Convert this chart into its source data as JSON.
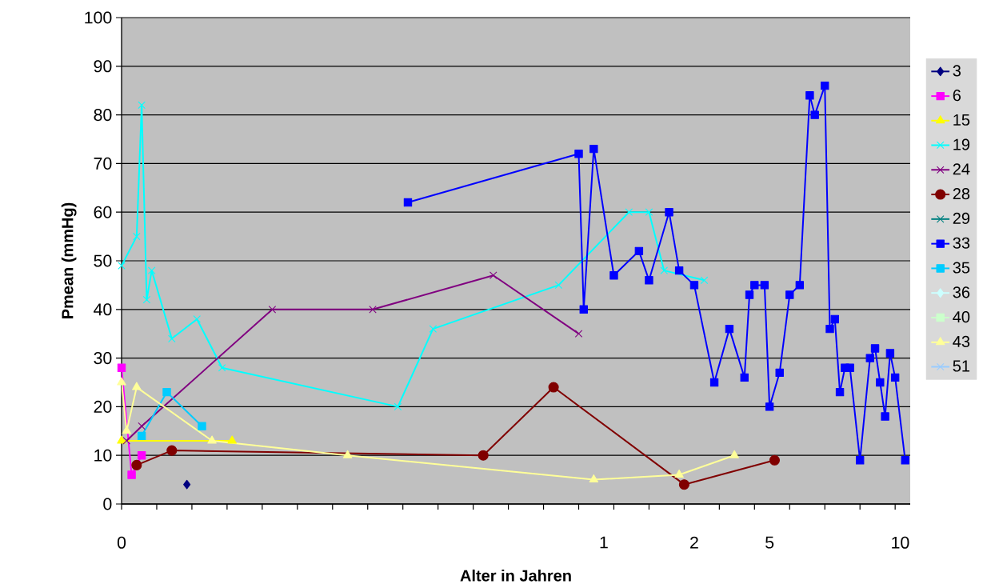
{
  "chart_data": {
    "type": "line",
    "xlabel": "Alter in Jahren",
    "ylabel": "Pmean (mmHg)",
    "categories": [
      "0",
      null,
      null,
      null,
      null,
      null,
      null,
      null,
      null,
      null,
      null,
      null,
      null,
      null,
      null,
      null,
      null,
      null,
      null,
      null,
      null,
      null,
      null,
      null,
      null,
      null,
      null,
      null,
      null,
      null,
      null,
      null,
      null,
      null,
      null,
      null,
      null,
      null,
      null,
      null,
      null,
      null,
      null,
      null,
      null,
      null,
      null,
      null,
      null,
      null,
      null,
      null,
      null,
      null,
      null,
      null,
      null,
      null,
      null,
      null,
      null,
      null,
      null,
      null,
      null,
      null,
      null,
      null,
      null,
      null,
      null,
      null,
      null,
      null,
      null,
      null,
      null,
      null,
      null,
      null,
      null,
      null,
      null,
      null,
      null,
      null,
      null,
      null,
      null,
      null,
      null,
      null,
      null,
      null,
      null,
      null,
      "1",
      null,
      null,
      null,
      null,
      null,
      null,
      null,
      null,
      null,
      null,
      null,
      null,
      null,
      null,
      null,
      null,
      null,
      "2",
      null,
      null,
      null,
      null,
      null,
      null,
      null,
      null,
      null,
      null,
      null,
      null,
      null,
      null,
      "5",
      null,
      null,
      null,
      null,
      null,
      null,
      null,
      null,
      null,
      null,
      null,
      null,
      null,
      null,
      null,
      null,
      null,
      null,
      null,
      null,
      null,
      null,
      null,
      null,
      null,
      "10",
      null,
      null
    ],
    "ylim": [
      0,
      100
    ],
    "yticks": [
      0,
      10,
      20,
      30,
      40,
      50,
      60,
      70,
      80,
      90,
      100
    ],
    "grid": "y",
    "legend": "right",
    "series": [
      {
        "name": "3",
        "color": "#000080",
        "marker": "diamond",
        "values": [
          null,
          null,
          null,
          null,
          null,
          null,
          null,
          null,
          null,
          null,
          null,
          null,
          null,
          4,
          null,
          null,
          null,
          null,
          null,
          null,
          null,
          null,
          null,
          null,
          null,
          null,
          null,
          null,
          null,
          null,
          null,
          null,
          null,
          null,
          null,
          null,
          null,
          null,
          null,
          null,
          null,
          null,
          null,
          null,
          null,
          null,
          null,
          null,
          null,
          null,
          null,
          null,
          null,
          null,
          null,
          null,
          null,
          null,
          null,
          null,
          null,
          null,
          null,
          null,
          null,
          null,
          null,
          null,
          null,
          null,
          null,
          null,
          null,
          null,
          null,
          null,
          null,
          null,
          null,
          null,
          null,
          null,
          null,
          null,
          null,
          null,
          null,
          null,
          null,
          null,
          null,
          null,
          null,
          null,
          null,
          null,
          null,
          null,
          null,
          null,
          null,
          null,
          null,
          null,
          null,
          null,
          null,
          null,
          null,
          null,
          null,
          null,
          null,
          null,
          null,
          null,
          null,
          null,
          null,
          null,
          null,
          null,
          null,
          null,
          null,
          null,
          null,
          null,
          null,
          null,
          null,
          null,
          null,
          null,
          null,
          null,
          null,
          null,
          null,
          null,
          null,
          null,
          null,
          null,
          null,
          null,
          null,
          null,
          null,
          null,
          null,
          null,
          null,
          null,
          null,
          null,
          null,
          null
        ]
      },
      {
        "name": "6",
        "color": "#ff00ff",
        "marker": "square",
        "values": [
          28,
          null,
          6,
          null,
          10,
          null,
          null,
          null,
          null,
          null,
          null,
          null,
          null,
          null,
          null,
          null,
          null,
          null,
          null,
          null,
          null,
          null,
          null,
          null,
          null,
          null,
          null,
          null,
          null,
          null,
          null,
          null,
          null,
          null,
          null,
          null,
          null,
          null,
          null,
          null,
          null,
          null,
          null,
          null,
          null,
          null,
          null,
          null,
          null,
          null,
          null,
          null,
          null,
          null,
          null,
          null,
          null,
          null,
          null,
          null,
          null,
          null,
          null,
          null,
          null,
          null,
          null,
          null,
          null,
          null,
          null,
          null,
          null,
          null,
          null,
          null,
          null,
          null,
          null,
          null,
          null,
          null,
          null,
          null,
          null,
          null,
          null,
          null,
          null,
          null,
          null,
          null,
          null,
          null,
          null,
          null,
          null,
          null,
          null,
          null,
          null,
          null,
          null,
          null,
          null,
          null,
          null,
          null,
          null,
          null,
          null,
          null,
          null,
          null,
          null,
          null,
          null,
          null,
          null,
          null,
          null,
          null,
          null,
          null,
          null,
          null,
          null,
          null,
          null,
          null,
          null,
          null,
          null,
          null,
          null,
          null,
          null,
          null,
          null,
          null,
          null,
          null,
          null,
          null,
          null,
          null,
          null,
          null,
          null,
          null,
          null,
          null,
          null,
          null,
          null,
          null,
          null,
          null
        ]
      },
      {
        "name": "15",
        "color": "#ffff00",
        "marker": "triangle",
        "values": [
          13,
          null,
          null,
          null,
          null,
          null,
          null,
          null,
          null,
          null,
          null,
          null,
          null,
          null,
          null,
          null,
          null,
          null,
          null,
          null,
          null,
          null,
          13,
          null,
          null,
          null,
          null,
          null,
          null,
          null,
          null,
          null,
          null,
          null,
          null,
          null,
          null,
          null,
          null,
          null,
          null,
          null,
          null,
          null,
          null,
          null,
          null,
          null,
          null,
          null,
          null,
          null,
          null,
          null,
          null,
          null,
          null,
          null,
          null,
          null,
          null,
          null,
          null,
          null,
          null,
          null,
          null,
          null,
          null,
          null,
          null,
          null,
          null,
          null,
          null,
          null,
          null,
          null,
          null,
          null,
          null,
          null,
          null,
          null,
          null,
          null,
          null,
          null,
          null,
          null,
          null,
          null,
          null,
          null,
          null,
          null,
          null,
          null,
          null,
          null,
          null,
          null,
          null,
          null,
          null,
          null,
          null,
          null,
          null,
          null,
          null,
          null,
          null,
          null,
          null,
          null,
          null,
          null,
          null,
          null,
          null,
          null,
          null,
          null,
          null,
          null,
          null,
          null,
          null,
          null,
          null,
          null,
          null,
          null,
          null,
          null,
          null,
          null,
          null,
          null,
          null,
          null,
          null,
          null,
          null,
          null,
          null,
          null,
          null,
          null,
          null,
          null,
          null,
          null,
          null,
          null,
          null,
          null
        ]
      },
      {
        "name": "19",
        "color": "#00ffff",
        "marker": "cross",
        "values": [
          49,
          null,
          null,
          55,
          82,
          42,
          48,
          null,
          null,
          null,
          34,
          null,
          null,
          null,
          null,
          38,
          null,
          null,
          null,
          null,
          28,
          null,
          null,
          null,
          null,
          null,
          null,
          null,
          null,
          null,
          null,
          null,
          null,
          null,
          null,
          null,
          null,
          null,
          null,
          null,
          null,
          null,
          null,
          null,
          null,
          null,
          null,
          null,
          null,
          null,
          null,
          null,
          null,
          null,
          null,
          20,
          null,
          null,
          null,
          null,
          null,
          null,
          36,
          null,
          null,
          null,
          null,
          null,
          null,
          null,
          null,
          null,
          null,
          null,
          null,
          null,
          null,
          null,
          null,
          null,
          null,
          null,
          null,
          null,
          null,
          null,
          null,
          45,
          null,
          null,
          null,
          null,
          null,
          null,
          null,
          null,
          null,
          null,
          null,
          null,
          null,
          60,
          null,
          null,
          null,
          60,
          null,
          null,
          48,
          null,
          null,
          null,
          null,
          null,
          null,
          null,
          46,
          null,
          null,
          null,
          null,
          null,
          null,
          null,
          null,
          null,
          null,
          null,
          null,
          null,
          null,
          null,
          null,
          null,
          null,
          null,
          null,
          null,
          null,
          null,
          null,
          null,
          null,
          null,
          null,
          null,
          null,
          null,
          null,
          null,
          null,
          null,
          null,
          null,
          null,
          null,
          null,
          null
        ]
      },
      {
        "name": "24",
        "color": "#800080",
        "marker": "cross",
        "values": [
          null,
          13,
          null,
          null,
          16,
          null,
          null,
          null,
          null,
          null,
          null,
          null,
          null,
          null,
          null,
          null,
          null,
          null,
          null,
          null,
          null,
          null,
          null,
          null,
          null,
          null,
          null,
          null,
          null,
          null,
          40,
          null,
          null,
          null,
          null,
          null,
          null,
          null,
          null,
          null,
          null,
          null,
          null,
          null,
          null,
          null,
          null,
          null,
          null,
          null,
          40,
          null,
          null,
          null,
          null,
          null,
          null,
          null,
          null,
          null,
          null,
          null,
          null,
          null,
          null,
          null,
          null,
          null,
          null,
          null,
          null,
          null,
          null,
          null,
          47,
          null,
          null,
          null,
          null,
          null,
          null,
          null,
          null,
          null,
          null,
          null,
          null,
          null,
          null,
          null,
          null,
          35,
          null,
          null,
          null,
          null,
          null,
          null,
          null,
          null,
          null,
          null,
          null,
          null,
          null,
          null,
          null,
          null,
          null,
          null,
          null,
          null,
          null,
          null,
          null,
          null,
          null,
          null,
          null,
          null,
          null,
          null,
          null,
          null,
          null,
          null,
          null,
          null,
          null,
          null,
          null,
          null,
          null,
          null,
          null,
          null,
          null,
          null,
          null,
          null,
          null,
          null,
          null,
          null,
          null,
          null,
          null,
          null,
          null,
          null,
          null,
          null,
          null,
          null,
          null,
          null,
          null,
          null
        ]
      },
      {
        "name": "28",
        "color": "#800000",
        "marker": "circle",
        "values": [
          null,
          null,
          null,
          8,
          null,
          null,
          null,
          null,
          null,
          null,
          11,
          null,
          null,
          null,
          null,
          null,
          null,
          null,
          null,
          null,
          null,
          null,
          null,
          null,
          null,
          null,
          null,
          null,
          null,
          null,
          null,
          null,
          null,
          null,
          null,
          null,
          null,
          null,
          null,
          null,
          null,
          null,
          null,
          null,
          null,
          null,
          null,
          null,
          null,
          null,
          null,
          null,
          null,
          null,
          null,
          null,
          null,
          null,
          null,
          null,
          null,
          null,
          null,
          null,
          null,
          null,
          null,
          null,
          null,
          null,
          null,
          null,
          10,
          null,
          null,
          null,
          null,
          null,
          null,
          null,
          null,
          null,
          null,
          null,
          null,
          null,
          24,
          null,
          null,
          null,
          null,
          null,
          null,
          null,
          null,
          null,
          null,
          null,
          null,
          null,
          null,
          null,
          null,
          null,
          null,
          null,
          null,
          null,
          null,
          null,
          null,
          null,
          4,
          null,
          null,
          null,
          null,
          null,
          null,
          null,
          null,
          null,
          null,
          null,
          null,
          null,
          null,
          null,
          null,
          null,
          9,
          null,
          null,
          null,
          null,
          null,
          null,
          null,
          null,
          null,
          null,
          null,
          null,
          null,
          null,
          null,
          null,
          null,
          null,
          null,
          null,
          null,
          null,
          null,
          null,
          null,
          null,
          null
        ]
      },
      {
        "name": "29",
        "color": "#008080",
        "marker": "cross",
        "values": [
          null,
          null,
          null,
          null,
          null,
          null,
          null,
          null,
          null,
          null,
          null,
          null,
          null,
          null,
          null,
          null,
          null,
          null,
          null,
          null,
          null,
          null,
          null,
          null,
          null,
          null,
          null,
          null,
          null,
          null,
          null,
          null,
          null,
          null,
          null,
          null,
          null,
          null,
          null,
          null,
          null,
          null,
          null,
          null,
          null,
          null,
          null,
          null,
          null,
          null,
          null,
          null,
          null,
          null,
          null,
          null,
          null,
          null,
          null,
          null,
          null,
          null,
          null,
          null,
          null,
          null,
          null,
          null,
          null,
          null,
          null,
          null,
          null,
          null,
          null,
          null,
          null,
          null,
          null,
          null,
          null,
          null,
          null,
          null,
          null,
          null,
          null,
          null,
          null,
          null,
          null,
          null,
          null,
          null,
          null,
          null,
          null,
          null,
          null,
          null,
          null,
          null,
          null,
          null,
          null,
          null,
          null,
          null,
          null,
          null,
          null,
          null,
          null,
          null,
          null,
          null,
          null,
          null,
          null,
          null,
          null,
          null,
          null,
          null,
          null,
          null,
          null,
          null,
          null,
          null,
          null,
          null,
          null,
          null,
          null,
          null,
          null,
          null,
          null,
          null,
          null,
          null,
          null,
          null,
          null,
          null,
          null,
          null,
          null,
          null,
          null,
          null,
          null,
          null,
          null,
          null,
          null,
          null
        ]
      },
      {
        "name": "33",
        "color": "#0000ff",
        "marker": "square",
        "values": [
          null,
          null,
          null,
          null,
          null,
          null,
          null,
          null,
          null,
          null,
          null,
          null,
          null,
          null,
          null,
          null,
          null,
          null,
          null,
          null,
          null,
          null,
          null,
          null,
          null,
          null,
          null,
          null,
          null,
          null,
          null,
          null,
          null,
          null,
          null,
          null,
          null,
          null,
          null,
          null,
          null,
          null,
          null,
          null,
          null,
          null,
          null,
          null,
          null,
          null,
          null,
          null,
          null,
          null,
          null,
          null,
          null,
          62,
          null,
          null,
          null,
          null,
          null,
          null,
          null,
          null,
          null,
          null,
          null,
          null,
          null,
          null,
          null,
          null,
          null,
          null,
          null,
          null,
          null,
          null,
          null,
          null,
          null,
          null,
          null,
          null,
          null,
          null,
          null,
          null,
          null,
          72,
          40,
          null,
          73,
          null,
          null,
          null,
          47,
          null,
          null,
          null,
          null,
          52,
          null,
          46,
          null,
          null,
          null,
          60,
          null,
          48,
          null,
          null,
          45,
          null,
          null,
          null,
          25,
          null,
          null,
          36,
          null,
          null,
          26,
          43,
          45,
          null,
          45,
          20,
          null,
          27,
          null,
          43,
          null,
          45,
          null,
          84,
          80,
          null,
          86,
          36,
          38,
          23,
          28,
          28,
          null,
          9,
          null,
          30,
          32,
          25,
          18,
          31,
          26,
          null,
          9,
          null
        ]
      },
      {
        "name": "35",
        "color": "#00ccff",
        "marker": "square",
        "values": [
          null,
          null,
          null,
          null,
          14,
          null,
          null,
          null,
          null,
          23,
          null,
          null,
          null,
          null,
          null,
          null,
          16,
          null,
          null,
          null,
          null,
          null,
          null,
          null,
          null,
          null,
          null,
          null,
          null,
          null,
          null,
          null,
          null,
          null,
          null,
          null,
          null,
          null,
          null,
          null,
          null,
          null,
          null,
          null,
          null,
          null,
          null,
          null,
          null,
          null,
          null,
          null,
          null,
          null,
          null,
          null,
          null,
          null,
          null,
          null,
          null,
          null,
          null,
          null,
          null,
          null,
          null,
          null,
          null,
          null,
          null,
          null,
          null,
          null,
          null,
          null,
          null,
          null,
          null,
          null,
          null,
          null,
          null,
          null,
          null,
          null,
          null,
          null,
          null,
          null,
          null,
          null,
          null,
          null,
          null,
          null,
          null,
          null,
          null,
          null,
          null,
          null,
          null,
          null,
          null,
          null,
          null,
          null,
          null,
          null,
          null,
          null,
          null,
          null,
          null,
          null,
          null,
          null,
          null,
          null,
          null,
          null,
          null,
          null,
          null,
          null,
          null,
          null,
          null,
          null,
          null,
          null,
          null,
          null,
          null,
          null,
          null,
          null,
          null,
          null,
          null,
          null,
          null,
          null,
          null,
          null,
          null,
          null,
          null,
          null,
          null,
          null,
          null,
          null,
          null,
          null,
          null,
          null
        ]
      },
      {
        "name": "36",
        "color": "#ccffff",
        "marker": "diamond",
        "values": [
          null,
          null,
          null,
          null,
          null,
          null,
          null,
          null,
          null,
          null,
          null,
          null,
          null,
          null,
          null,
          null,
          null,
          null,
          null,
          null,
          null,
          null,
          null,
          null,
          null,
          null,
          null,
          null,
          null,
          null,
          null,
          null,
          null,
          null,
          null,
          null,
          null,
          null,
          null,
          null,
          null,
          null,
          null,
          null,
          null,
          null,
          null,
          null,
          null,
          null,
          null,
          null,
          null,
          null,
          null,
          null,
          null,
          null,
          null,
          null,
          null,
          null,
          null,
          null,
          null,
          null,
          null,
          null,
          null,
          null,
          null,
          null,
          null,
          null,
          null,
          null,
          null,
          null,
          null,
          null,
          null,
          null,
          null,
          null,
          null,
          null,
          null,
          null,
          null,
          null,
          null,
          null,
          null,
          null,
          null,
          null,
          null,
          null,
          null,
          null,
          null,
          null,
          null,
          null,
          null,
          null,
          null,
          null,
          null,
          null,
          null,
          null,
          null,
          null,
          null,
          null,
          null,
          null,
          null,
          null,
          null,
          null,
          null,
          null,
          null,
          null,
          null,
          null,
          null,
          null,
          null,
          null,
          null,
          null,
          null,
          null,
          null,
          null,
          null,
          null,
          null,
          null,
          null,
          null,
          null,
          null,
          null,
          null,
          null,
          null,
          null,
          null,
          null,
          null,
          null,
          null,
          null,
          null
        ]
      },
      {
        "name": "40",
        "color": "#ccffcc",
        "marker": "square",
        "values": [
          null,
          null,
          null,
          null,
          null,
          null,
          null,
          null,
          null,
          null,
          null,
          null,
          null,
          null,
          null,
          null,
          null,
          null,
          null,
          null,
          null,
          null,
          null,
          null,
          null,
          null,
          null,
          null,
          null,
          null,
          null,
          null,
          null,
          null,
          null,
          null,
          null,
          null,
          null,
          null,
          null,
          null,
          null,
          null,
          null,
          null,
          null,
          null,
          null,
          null,
          null,
          null,
          null,
          null,
          null,
          null,
          null,
          null,
          null,
          null,
          null,
          null,
          null,
          null,
          null,
          null,
          null,
          null,
          null,
          null,
          null,
          null,
          null,
          null,
          null,
          null,
          null,
          null,
          null,
          null,
          null,
          null,
          null,
          null,
          null,
          null,
          null,
          null,
          null,
          null,
          null,
          null,
          null,
          null,
          null,
          null,
          null,
          null,
          null,
          null,
          null,
          null,
          null,
          null,
          null,
          null,
          null,
          null,
          null,
          null,
          null,
          null,
          null,
          null,
          null,
          null,
          null,
          null,
          null,
          null,
          null,
          null,
          null,
          null,
          null,
          null,
          null,
          null,
          null,
          null,
          null,
          null,
          null,
          null,
          null,
          null,
          null,
          null,
          null,
          null,
          null,
          null,
          null,
          null,
          null,
          null,
          null,
          null,
          null,
          null,
          null,
          null,
          null,
          null,
          null,
          null,
          null,
          null
        ]
      },
      {
        "name": "43",
        "color": "#ffff99",
        "marker": "triangle",
        "values": [
          25,
          15,
          null,
          24,
          null,
          null,
          null,
          null,
          null,
          null,
          null,
          null,
          null,
          null,
          null,
          null,
          null,
          null,
          13,
          null,
          null,
          null,
          null,
          null,
          null,
          null,
          null,
          null,
          null,
          null,
          null,
          null,
          null,
          null,
          null,
          null,
          null,
          null,
          null,
          null,
          null,
          null,
          null,
          null,
          null,
          10,
          null,
          null,
          null,
          null,
          null,
          null,
          null,
          null,
          null,
          null,
          null,
          null,
          null,
          null,
          null,
          null,
          null,
          null,
          null,
          null,
          null,
          null,
          null,
          null,
          null,
          null,
          null,
          null,
          null,
          null,
          null,
          null,
          null,
          null,
          null,
          null,
          null,
          null,
          null,
          null,
          null,
          null,
          null,
          null,
          null,
          null,
          null,
          null,
          5,
          null,
          null,
          null,
          null,
          null,
          null,
          null,
          null,
          null,
          null,
          null,
          null,
          null,
          null,
          null,
          null,
          6,
          null,
          null,
          null,
          null,
          null,
          null,
          null,
          null,
          null,
          null,
          10,
          null,
          null,
          null,
          null,
          null,
          null,
          null,
          null,
          null,
          null,
          null,
          null,
          null,
          null,
          null,
          null,
          null,
          null,
          null,
          null,
          null,
          null,
          null,
          null,
          null,
          null,
          null,
          null,
          null,
          null,
          null,
          null,
          null,
          null,
          null
        ]
      },
      {
        "name": "51",
        "color": "#99ccff",
        "marker": "cross",
        "values": [
          null,
          null,
          null,
          null,
          null,
          null,
          null,
          null,
          null,
          null,
          null,
          null,
          null,
          null,
          null,
          null,
          null,
          null,
          null,
          null,
          null,
          null,
          null,
          null,
          null,
          null,
          null,
          null,
          null,
          null,
          null,
          null,
          null,
          null,
          null,
          null,
          null,
          null,
          null,
          null,
          null,
          null,
          null,
          null,
          null,
          null,
          null,
          null,
          null,
          null,
          null,
          null,
          null,
          null,
          null,
          null,
          null,
          null,
          null,
          null,
          null,
          null,
          null,
          null,
          null,
          null,
          null,
          null,
          null,
          null,
          null,
          null,
          null,
          null,
          null,
          null,
          null,
          null,
          null,
          null,
          null,
          null,
          null,
          null,
          null,
          null,
          null,
          null,
          null,
          null,
          null,
          null,
          null,
          null,
          null,
          null,
          null,
          null,
          null,
          null,
          null,
          null,
          null,
          null,
          null,
          null,
          null,
          null,
          null,
          null,
          null,
          null,
          null,
          null,
          null,
          null,
          null,
          null,
          null,
          null,
          null,
          null,
          null,
          null,
          null,
          null,
          null,
          null,
          null,
          null,
          null,
          null,
          null,
          null,
          null,
          null,
          null,
          null,
          null,
          null,
          null,
          null,
          null,
          null,
          null,
          null,
          null,
          null,
          null,
          null,
          null,
          null,
          null,
          null,
          null,
          null,
          null,
          null
        ]
      }
    ]
  }
}
